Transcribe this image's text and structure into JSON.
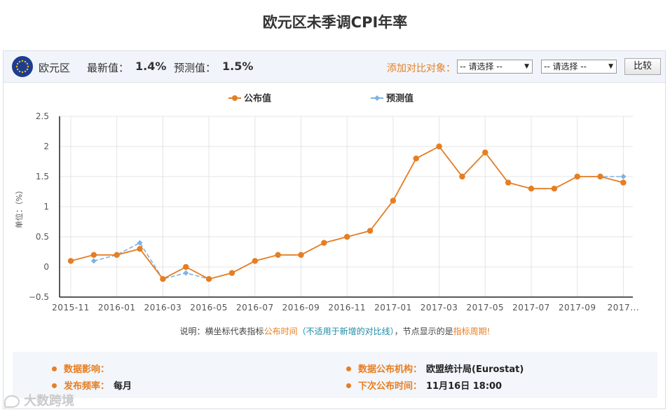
{
  "page_title": "欧元区未季调CPI年率",
  "infobar": {
    "region": "欧元区",
    "latest_label": "最新值：",
    "latest_value": "1.4%",
    "forecast_label": "预测值：",
    "forecast_value": "1.5%",
    "compare_label": "添加对比对象：",
    "select1": "-- 请选择 --",
    "select2": "-- 请选择 --",
    "compare_button": "比较"
  },
  "chart_data": {
    "type": "line",
    "ylabel": "单位：（%）",
    "ylim": [
      -0.5,
      2.5
    ],
    "yticks": [
      "2.5",
      "2",
      "1.5",
      "1",
      "0.5",
      "0",
      "−0.5"
    ],
    "ytick_values": [
      2.5,
      2,
      1.5,
      1,
      0.5,
      0,
      -0.5
    ],
    "xticks": [
      "2015-11",
      "2016-01",
      "2016-03",
      "2016-05",
      "2016-07",
      "2016-09",
      "2016-11",
      "2017-01",
      "2017-03",
      "2017-05",
      "2017-07",
      "2017-09",
      "2017..."
    ],
    "x": [
      "2015-11",
      "2015-12",
      "2016-01",
      "2016-02",
      "2016-03",
      "2016-04",
      "2016-05",
      "2016-06",
      "2016-07",
      "2016-08",
      "2016-09",
      "2016-10",
      "2016-11",
      "2016-12",
      "2017-01",
      "2017-02",
      "2017-03",
      "2017-04",
      "2017-05",
      "2017-06",
      "2017-07",
      "2017-08",
      "2017-09",
      "2017-10",
      "2017-11"
    ],
    "grid": true,
    "legend_position": "top-center",
    "series": [
      {
        "name": "公布值",
        "color": "#e67e22",
        "values": [
          0.1,
          0.2,
          0.2,
          0.3,
          -0.2,
          0.0,
          -0.2,
          -0.1,
          0.1,
          0.2,
          0.2,
          0.4,
          0.5,
          0.6,
          1.1,
          1.8,
          2.0,
          1.5,
          1.9,
          1.4,
          1.3,
          1.3,
          1.5,
          1.5,
          1.4
        ]
      },
      {
        "name": "预测值",
        "color": "#7fb2e5",
        "values": [
          null,
          0.1,
          0.2,
          0.4,
          -0.2,
          -0.1,
          -0.2,
          -0.1,
          0.1,
          0.2,
          0.2,
          0.4,
          0.5,
          0.6,
          1.1,
          1.8,
          2.0,
          1.5,
          1.9,
          1.4,
          1.3,
          1.3,
          1.5,
          1.5,
          1.5
        ]
      }
    ]
  },
  "footnote": {
    "prefix": "说明：横坐标代表指标",
    "publish_time": "公布时间",
    "paren": "（不适用于新增的对比线）",
    "middle": "，节点显示的是",
    "period": "指标周期",
    "suffix": "!"
  },
  "info": {
    "impact_label": "数据影响：",
    "impact_value": "",
    "agency_label": "数据公布机构：",
    "agency_value": "欧盟统计局(Eurostat)",
    "freq_label": "发布频率：",
    "freq_value": "每月",
    "next_label": "下次公布时间：",
    "next_value": "11月16日 18:00"
  },
  "watermark": "大数跨境"
}
